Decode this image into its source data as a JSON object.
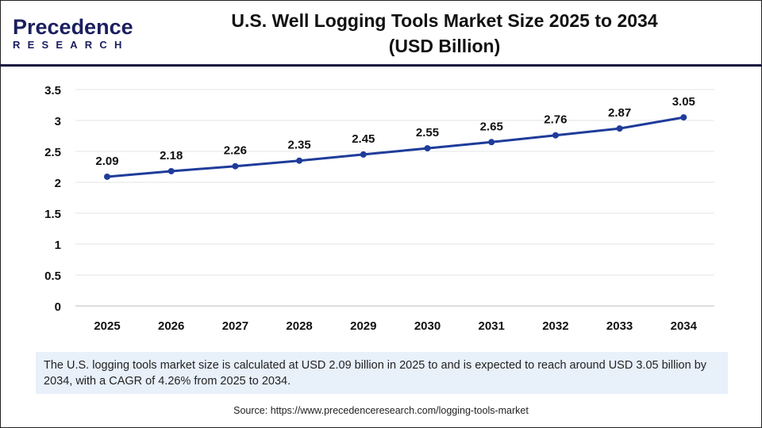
{
  "logo": {
    "line1": "Precedence",
    "line2": "RESEARCH"
  },
  "title_line1": "U.S. Well Logging Tools Market Size 2025 to 2034",
  "title_line2": "(USD Billion)",
  "summary": "The U.S. logging tools market size is calculated at USD 2.09 billion in 2025 to and is expected to reach around USD 3.05 billion by 2034, with a CAGR of 4.26% from 2025 to 2034.",
  "source": "Source: https://www.precedenceresearch.com/logging-tools-market",
  "colors": {
    "line": "#1f3c9a",
    "header": "#14163f",
    "summary_bg": "#e8f0fa"
  },
  "chart_data": {
    "type": "line",
    "categories": [
      "2025",
      "2026",
      "2027",
      "2028",
      "2029",
      "2030",
      "2031",
      "2032",
      "2033",
      "2034"
    ],
    "values": [
      2.09,
      2.18,
      2.26,
      2.35,
      2.45,
      2.55,
      2.65,
      2.76,
      2.87,
      3.05
    ],
    "data_labels": [
      "2.09",
      "2.18",
      "2.26",
      "2.35",
      "2.45",
      "2.55",
      "2.65",
      "2.76",
      "2.87",
      "3.05"
    ],
    "yticks": [
      "0",
      "0.5",
      "1",
      "1.5",
      "2",
      "2.5",
      "3",
      "3.5"
    ],
    "ylim": [
      0,
      3.5
    ],
    "grid": true,
    "xlabel": "",
    "ylabel": ""
  }
}
